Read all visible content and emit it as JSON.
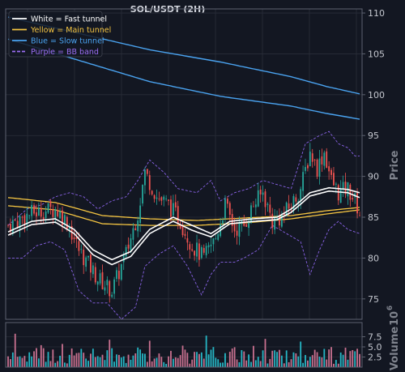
{
  "chart_data": {
    "type": "candlestick",
    "title": "SOL/USDT (2H)",
    "ylabel_price": "Price",
    "ylabel_volume": "Volume",
    "volume_exponent": "10",
    "volume_exponent_power": "6",
    "price_ylim": [
      72.5,
      110.5
    ],
    "price_yticks": [
      "75",
      "80",
      "85",
      "90",
      "95",
      "100",
      "105",
      "110"
    ],
    "volume_ylim": [
      0,
      11
    ],
    "volume_yticks": [
      "2.5",
      "5.0",
      "7.5"
    ],
    "grid": true,
    "legend_position": "top-left",
    "legend": [
      {
        "label": "White = Fast tunnel",
        "color": "#ffffff",
        "dash": false
      },
      {
        "label": "Yellow = Main tunnel",
        "color": "#f5c542",
        "dash": false
      },
      {
        "label": "Blue = Slow tunnel",
        "color": "#4aa3f0",
        "dash": false
      },
      {
        "label": "Purple = BB band",
        "color": "#9b6ef3",
        "dash": true
      }
    ],
    "n_candles": 150,
    "close_anchors": [
      [
        0,
        84.0
      ],
      [
        10,
        85.5
      ],
      [
        20,
        86.0
      ],
      [
        25,
        84.5
      ],
      [
        30,
        81.0
      ],
      [
        38,
        77.5
      ],
      [
        44,
        76.0
      ],
      [
        50,
        80.5
      ],
      [
        55,
        85.5
      ],
      [
        58,
        90.5
      ],
      [
        63,
        87.5
      ],
      [
        68,
        86.5
      ],
      [
        73,
        84.5
      ],
      [
        78,
        81.5
      ],
      [
        83,
        80.0
      ],
      [
        88,
        82.5
      ],
      [
        92,
        86.5
      ],
      [
        96,
        83.5
      ],
      [
        100,
        84.0
      ],
      [
        104,
        86.5
      ],
      [
        108,
        88.0
      ],
      [
        112,
        84.5
      ],
      [
        116,
        85.0
      ],
      [
        120,
        86.5
      ],
      [
        124,
        88.5
      ],
      [
        128,
        93.0
      ],
      [
        131,
        91.0
      ],
      [
        134,
        93.0
      ],
      [
        137,
        89.5
      ],
      [
        140,
        88.0
      ],
      [
        144,
        88.5
      ],
      [
        147,
        87.0
      ],
      [
        149,
        85.5
      ]
    ],
    "fast_tunnel": {
      "upper": [
        [
          0,
          83.2
        ],
        [
          10,
          84.5
        ],
        [
          20,
          84.8
        ],
        [
          28,
          83.5
        ],
        [
          36,
          81.0
        ],
        [
          44,
          79.8
        ],
        [
          52,
          80.8
        ],
        [
          60,
          83.5
        ],
        [
          70,
          85.0
        ],
        [
          78,
          84.0
        ],
        [
          86,
          83.0
        ],
        [
          94,
          84.5
        ],
        [
          104,
          84.8
        ],
        [
          114,
          85.0
        ],
        [
          120,
          86.0
        ],
        [
          128,
          88.0
        ],
        [
          136,
          88.6
        ],
        [
          144,
          88.4
        ],
        [
          149,
          88.0
        ]
      ],
      "lower": [
        [
          0,
          82.8
        ],
        [
          10,
          84.1
        ],
        [
          20,
          84.4
        ],
        [
          28,
          83.0
        ],
        [
          36,
          80.4
        ],
        [
          44,
          79.2
        ],
        [
          52,
          80.2
        ],
        [
          60,
          83.0
        ],
        [
          70,
          84.5
        ],
        [
          78,
          83.4
        ],
        [
          86,
          82.6
        ],
        [
          94,
          84.2
        ],
        [
          104,
          84.5
        ],
        [
          114,
          84.7
        ],
        [
          120,
          85.6
        ],
        [
          128,
          87.6
        ],
        [
          136,
          88.2
        ],
        [
          144,
          88.0
        ],
        [
          149,
          87.4
        ]
      ]
    },
    "main_tunnel": {
      "upper": [
        [
          0,
          87.4
        ],
        [
          20,
          86.8
        ],
        [
          40,
          85.2
        ],
        [
          60,
          84.8
        ],
        [
          80,
          84.6
        ],
        [
          100,
          84.9
        ],
        [
          120,
          85.2
        ],
        [
          135,
          85.8
        ],
        [
          149,
          86.2
        ]
      ],
      "lower": [
        [
          0,
          86.4
        ],
        [
          20,
          85.9
        ],
        [
          40,
          84.2
        ],
        [
          60,
          84.0
        ],
        [
          80,
          84.0
        ],
        [
          100,
          84.3
        ],
        [
          120,
          84.8
        ],
        [
          135,
          85.4
        ],
        [
          149,
          85.9
        ]
      ]
    },
    "slow_tunnel": {
      "upper": [
        [
          0,
          109.5
        ],
        [
          30,
          107.5
        ],
        [
          60,
          105.5
        ],
        [
          90,
          104.0
        ],
        [
          120,
          102.2
        ],
        [
          135,
          101.0
        ],
        [
          149,
          100.1
        ]
      ],
      "lower": [
        [
          0,
          106.8
        ],
        [
          30,
          104.2
        ],
        [
          60,
          101.6
        ],
        [
          90,
          99.8
        ],
        [
          120,
          98.6
        ],
        [
          135,
          97.7
        ],
        [
          149,
          97.0
        ]
      ]
    },
    "bb_upper": [
      [
        0,
        84.0
      ],
      [
        8,
        86.0
      ],
      [
        14,
        86.5
      ],
      [
        20,
        87.5
      ],
      [
        26,
        88.0
      ],
      [
        32,
        87.5
      ],
      [
        38,
        86.0
      ],
      [
        44,
        87.0
      ],
      [
        50,
        87.5
      ],
      [
        55,
        89.5
      ],
      [
        60,
        92.0
      ],
      [
        66,
        90.5
      ],
      [
        72,
        88.5
      ],
      [
        80,
        88.0
      ],
      [
        86,
        89.5
      ],
      [
        90,
        87.0
      ],
      [
        96,
        88.0
      ],
      [
        102,
        88.5
      ],
      [
        108,
        89.5
      ],
      [
        114,
        89.0
      ],
      [
        120,
        88.5
      ],
      [
        126,
        94.0
      ],
      [
        132,
        95.0
      ],
      [
        136,
        95.5
      ],
      [
        140,
        94.0
      ],
      [
        144,
        93.5
      ],
      [
        147,
        92.5
      ],
      [
        149,
        92.5
      ]
    ],
    "bb_lower": [
      [
        0,
        80.0
      ],
      [
        6,
        80.0
      ],
      [
        12,
        81.5
      ],
      [
        18,
        82.0
      ],
      [
        24,
        81.0
      ],
      [
        30,
        76.0
      ],
      [
        36,
        74.5
      ],
      [
        42,
        74.5
      ],
      [
        48,
        72.5
      ],
      [
        54,
        74.0
      ],
      [
        58,
        79.0
      ],
      [
        64,
        80.5
      ],
      [
        70,
        81.5
      ],
      [
        76,
        79.0
      ],
      [
        82,
        75.5
      ],
      [
        86,
        78.0
      ],
      [
        90,
        79.5
      ],
      [
        96,
        79.5
      ],
      [
        100,
        80.0
      ],
      [
        106,
        81.0
      ],
      [
        112,
        84.0
      ],
      [
        118,
        83.0
      ],
      [
        124,
        82.0
      ],
      [
        128,
        78.0
      ],
      [
        132,
        81.0
      ],
      [
        136,
        83.5
      ],
      [
        140,
        84.5
      ],
      [
        144,
        83.5
      ],
      [
        149,
        83.0
      ]
    ]
  }
}
